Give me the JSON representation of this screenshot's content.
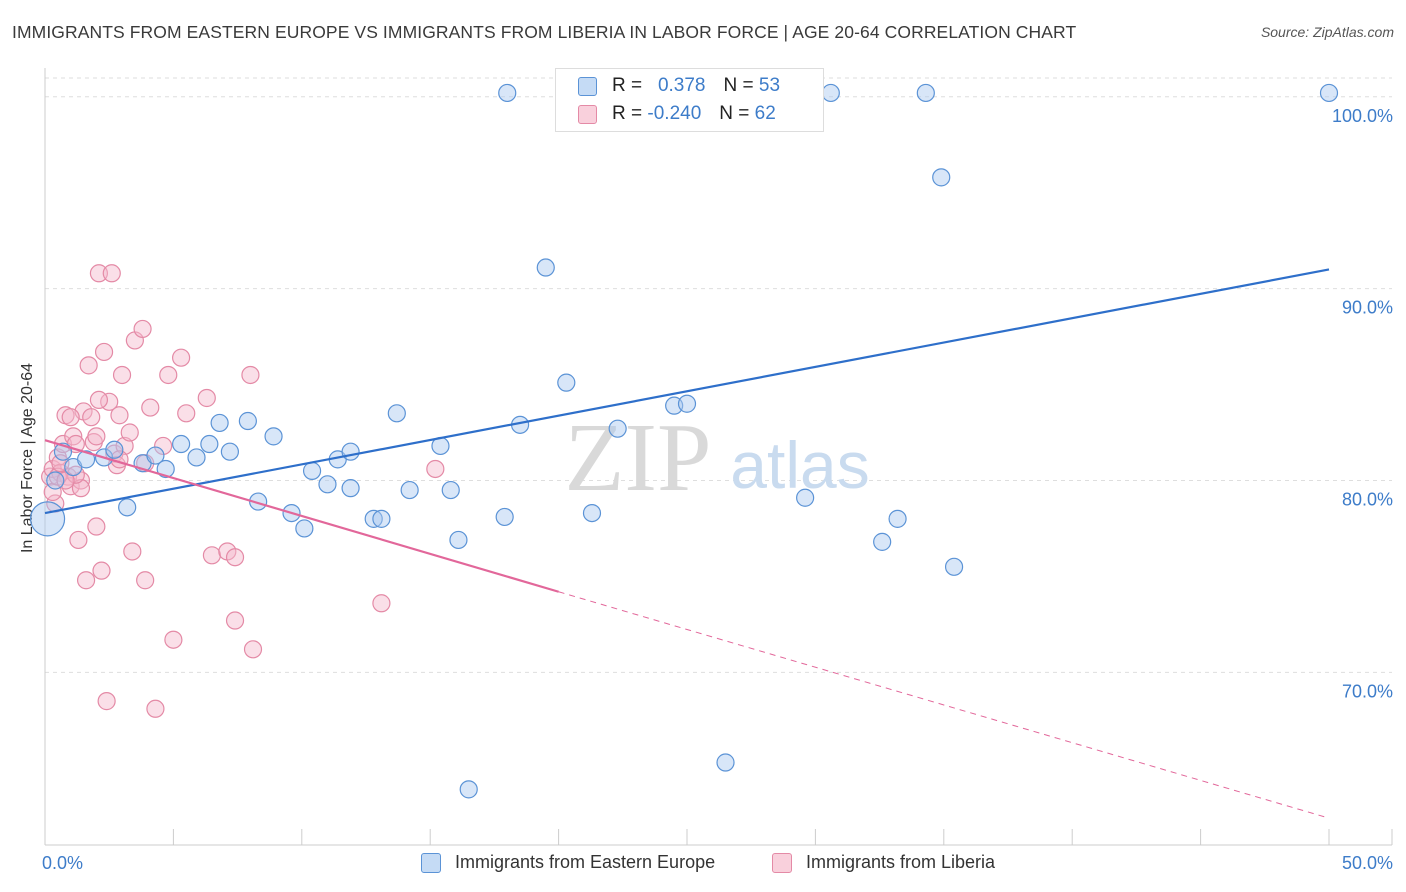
{
  "title": "IMMIGRANTS FROM EASTERN EUROPE VS IMMIGRANTS FROM LIBERIA IN LABOR FORCE | AGE 20-64 CORRELATION CHART",
  "source": "Source: ZipAtlas.com",
  "watermark": {
    "zip": "ZIP",
    "atlas": "atlas"
  },
  "legend_top": {
    "rows": [
      {
        "r_label": "R =",
        "r_value": "0.378",
        "n_label": "N =",
        "n_value": "53"
      },
      {
        "r_label": "R =",
        "r_value": "-0.240",
        "n_label": "N =",
        "n_value": "62"
      }
    ]
  },
  "legend_bottom": {
    "series1": "Immigrants from Eastern Europe",
    "series2": "Immigrants from Liberia"
  },
  "colors": {
    "blue_fill": "#a8c8f0",
    "blue_stroke": "#5b93d6",
    "blue_line": "#2e6fca",
    "pink_fill": "#f5b8cb",
    "pink_stroke": "#e48aa6",
    "pink_line": "#e2679a",
    "grid": "#dedede",
    "tick_text": "#3d7cc9",
    "watermark": "#d9d9d9",
    "watermark_atlas": "#c9dbef"
  },
  "chart_data": {
    "type": "scatter",
    "title": "IMMIGRANTS FROM EASTERN EUROPE VS IMMIGRANTS FROM LIBERIA IN LABOR FORCE | AGE 20-64 CORRELATION CHART",
    "xlabel": "",
    "ylabel": "In Labor Force | Age 20-64",
    "xlim": [
      0,
      50
    ],
    "ylim": [
      61.0,
      101.5
    ],
    "x_tick_labels": [
      {
        "value": 0,
        "label": "0.0%"
      },
      {
        "value": 50,
        "label": "50.0%"
      }
    ],
    "y_tick_labels": [
      {
        "value": 100,
        "label": "100.0%"
      },
      {
        "value": 90,
        "label": "90.0%"
      },
      {
        "value": 80,
        "label": "80.0%"
      },
      {
        "value": 70,
        "label": "70.0%"
      }
    ],
    "x_minor_ticks": [
      0,
      5,
      10,
      15,
      20,
      25,
      30,
      35,
      40,
      45,
      50
    ],
    "series": [
      {
        "name": "Immigrants from Eastern Europe",
        "color": "blue",
        "points": [
          [
            0.1,
            78.0,
            2
          ],
          [
            1.1,
            80.7,
            1
          ],
          [
            2.3,
            81.2,
            1
          ],
          [
            3.2,
            78.6,
            1
          ],
          [
            3.8,
            80.9,
            1
          ],
          [
            4.3,
            81.3,
            1
          ],
          [
            4.7,
            80.6,
            1
          ],
          [
            5.3,
            81.9,
            1
          ],
          [
            5.9,
            81.2,
            1
          ],
          [
            6.4,
            81.9,
            1
          ],
          [
            6.8,
            83.0,
            1
          ],
          [
            7.2,
            81.5,
            1
          ],
          [
            7.9,
            83.1,
            1
          ],
          [
            8.3,
            78.9,
            1
          ],
          [
            8.9,
            82.3,
            1
          ],
          [
            9.6,
            78.3,
            1
          ],
          [
            10.1,
            77.5,
            1
          ],
          [
            10.4,
            80.5,
            1
          ],
          [
            11.0,
            79.8,
            1
          ],
          [
            11.4,
            81.1,
            1
          ],
          [
            11.9,
            81.5,
            1
          ],
          [
            11.9,
            79.6,
            1
          ],
          [
            12.8,
            78.0,
            1
          ],
          [
            13.1,
            78.0,
            1
          ],
          [
            13.7,
            83.5,
            1
          ],
          [
            14.2,
            79.5,
            1
          ],
          [
            15.4,
            81.8,
            1
          ],
          [
            15.8,
            79.5,
            1
          ],
          [
            16.1,
            76.9,
            1
          ],
          [
            16.5,
            63.9,
            1
          ],
          [
            17.9,
            78.1,
            1
          ],
          [
            18.5,
            82.9,
            1
          ],
          [
            19.5,
            91.1,
            1
          ],
          [
            20.3,
            85.1,
            1
          ],
          [
            21.3,
            78.3,
            1
          ],
          [
            22.3,
            82.7,
            1
          ],
          [
            24.5,
            83.9,
            1
          ],
          [
            25.0,
            84.0,
            1
          ],
          [
            26.5,
            65.3,
            1
          ],
          [
            29.6,
            79.1,
            1
          ],
          [
            32.6,
            76.8,
            1
          ],
          [
            33.2,
            78.0,
            1
          ],
          [
            35.4,
            75.5,
            1
          ],
          [
            34.9,
            95.8,
            1
          ],
          [
            18.0,
            100.2,
            1
          ],
          [
            25.8,
            100.2,
            1
          ],
          [
            30.6,
            100.2,
            1
          ],
          [
            34.3,
            100.2,
            1
          ],
          [
            50.0,
            100.2,
            1
          ],
          [
            0.7,
            81.5,
            1
          ],
          [
            1.6,
            81.1,
            1
          ],
          [
            0.4,
            80.0,
            1
          ],
          [
            2.7,
            81.6,
            1
          ]
        ],
        "trendline": {
          "x": [
            0,
            50
          ],
          "y": [
            78.3,
            91.0
          ]
        }
      },
      {
        "name": "Immigrants from Liberia",
        "color": "pink",
        "points": [
          [
            0.2,
            80.2,
            1
          ],
          [
            0.3,
            80.6,
            1
          ],
          [
            0.4,
            78.8,
            1
          ],
          [
            0.5,
            81.2,
            1
          ],
          [
            0.6,
            80.4,
            1
          ],
          [
            0.7,
            81.9,
            1
          ],
          [
            0.8,
            83.4,
            1
          ],
          [
            0.9,
            80.2,
            1
          ],
          [
            1.0,
            79.7,
            1
          ],
          [
            1.1,
            82.3,
            1
          ],
          [
            1.2,
            81.9,
            1
          ],
          [
            1.3,
            76.9,
            1
          ],
          [
            1.4,
            80.0,
            1
          ],
          [
            1.5,
            83.6,
            1
          ],
          [
            1.6,
            74.8,
            1
          ],
          [
            1.7,
            86.0,
            1
          ],
          [
            1.8,
            83.3,
            1
          ],
          [
            1.9,
            82.0,
            1
          ],
          [
            2.0,
            77.6,
            1
          ],
          [
            2.1,
            90.8,
            1
          ],
          [
            2.2,
            75.3,
            1
          ],
          [
            2.3,
            86.7,
            1
          ],
          [
            2.4,
            68.5,
            1
          ],
          [
            2.5,
            84.1,
            1
          ],
          [
            2.6,
            90.8,
            1
          ],
          [
            2.7,
            81.4,
            1
          ],
          [
            2.8,
            80.8,
            1
          ],
          [
            2.9,
            83.4,
            1
          ],
          [
            3.0,
            85.5,
            1
          ],
          [
            3.1,
            81.8,
            1
          ],
          [
            3.3,
            82.5,
            1
          ],
          [
            3.4,
            76.3,
            1
          ],
          [
            3.5,
            87.3,
            1
          ],
          [
            3.8,
            87.9,
            1
          ],
          [
            3.9,
            74.8,
            1
          ],
          [
            4.1,
            83.8,
            1
          ],
          [
            4.3,
            68.1,
            1
          ],
          [
            4.6,
            81.8,
            1
          ],
          [
            4.8,
            85.5,
            1
          ],
          [
            5.0,
            71.7,
            1
          ],
          [
            5.3,
            86.4,
            1
          ],
          [
            5.5,
            83.5,
            1
          ],
          [
            6.3,
            84.3,
            1
          ],
          [
            6.5,
            76.1,
            1
          ],
          [
            7.1,
            76.3,
            1
          ],
          [
            7.4,
            72.7,
            1
          ],
          [
            7.4,
            76.0,
            1
          ],
          [
            8.0,
            85.5,
            1
          ],
          [
            8.1,
            71.2,
            1
          ],
          [
            13.1,
            73.6,
            1
          ],
          [
            15.2,
            80.6,
            1
          ],
          [
            2.1,
            84.2,
            1
          ],
          [
            1.0,
            83.3,
            1
          ],
          [
            0.3,
            79.4,
            1
          ],
          [
            0.5,
            80.2,
            1
          ],
          [
            1.4,
            79.6,
            1
          ],
          [
            2.9,
            81.1,
            1
          ],
          [
            0.6,
            80.9,
            1
          ],
          [
            2.0,
            82.3,
            1
          ],
          [
            3.9,
            80.9,
            1
          ],
          [
            1.2,
            80.3,
            1
          ],
          [
            0.8,
            80.0,
            1
          ]
        ],
        "trendline": {
          "x": [
            0,
            20
          ],
          "y": [
            82.1,
            74.2
          ]
        },
        "trendline_dashed": {
          "x": [
            20,
            50
          ],
          "y": [
            74.2,
            62.4
          ]
        }
      }
    ]
  }
}
